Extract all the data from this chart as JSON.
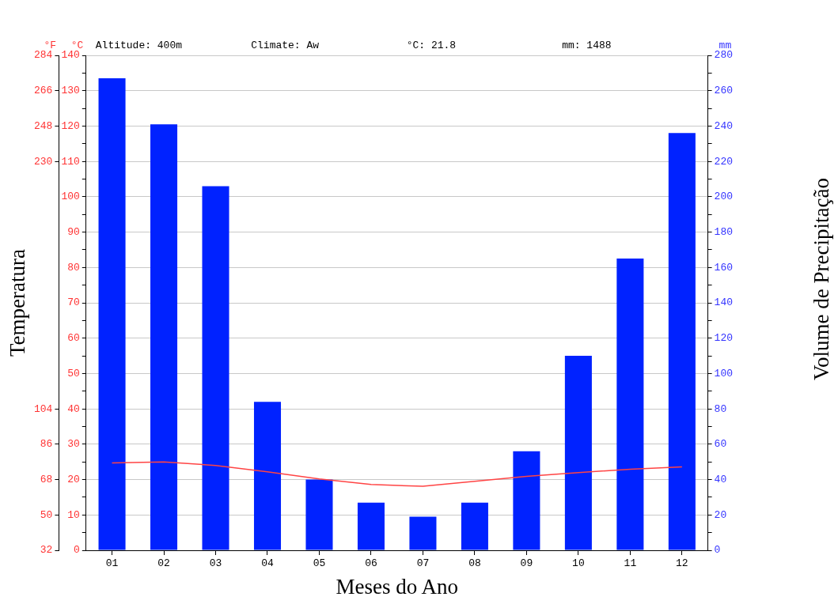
{
  "chart_data": {
    "type": "bar",
    "xlabel": "Meses do Ano",
    "ylabel": "Temperatura",
    "y2label": "Volume de Precipitação",
    "annotations": [
      "°F",
      "°C",
      "Altitude: 400m",
      "Climate: Aw",
      "°C: 21.8",
      "mm: 1488",
      "mm"
    ],
    "categories": [
      "01",
      "02",
      "03",
      "04",
      "05",
      "06",
      "07",
      "08",
      "09",
      "10",
      "11",
      "12"
    ],
    "series": [
      {
        "axis": "y2",
        "color": "#0022ff",
        "values": [
          267,
          241,
          206,
          84,
          40,
          27,
          19,
          27,
          56,
          110,
          165,
          236
        ]
      },
      {
        "type": "line",
        "axis": "y",
        "color": "#ff4444",
        "values": [
          24.7,
          25.0,
          24.0,
          22.2,
          20.2,
          18.6,
          18.1,
          19.5,
          20.9,
          22.0,
          22.9,
          23.6
        ]
      }
    ],
    "ylim": [
      0,
      140
    ],
    "yticks": [
      0,
      {
        "value": 5,
        "label": null
      },
      10,
      {
        "value": 15,
        "label": null
      },
      20,
      {
        "value": 25,
        "label": null
      },
      30,
      {
        "value": 35,
        "label": null
      },
      40,
      {
        "value": 45,
        "label": null
      },
      50,
      {
        "value": 55,
        "label": null
      },
      60,
      {
        "value": 65,
        "label": null
      },
      70,
      {
        "value": 75,
        "label": null
      },
      80,
      {
        "value": 85,
        "label": null
      },
      90,
      {
        "value": 95,
        "label": null
      },
      100,
      {
        "value": 105,
        "label": null
      },
      110,
      {
        "value": 115,
        "label": null
      },
      120,
      {
        "value": 125,
        "label": null
      },
      130,
      {
        "value": 135,
        "label": null
      },
      140
    ],
    "y2lim": [
      0,
      280
    ],
    "y2ticks": [
      0,
      {
        "value": 10,
        "label": null
      },
      20,
      {
        "value": 30,
        "label": null
      },
      40,
      {
        "value": 50,
        "label": null
      },
      60,
      {
        "value": 70,
        "label": null
      },
      80,
      {
        "value": 90,
        "label": null
      },
      100,
      {
        "value": 110,
        "label": null
      },
      120,
      {
        "value": 130,
        "label": null
      },
      140,
      {
        "value": 150,
        "label": null
      },
      160,
      {
        "value": 170,
        "label": null
      },
      180,
      {
        "value": 190,
        "label": null
      },
      200,
      {
        "value": 210,
        "label": null
      },
      220,
      {
        "value": 230,
        "label": null
      },
      240,
      {
        "value": 250,
        "label": null
      },
      260,
      {
        "value": 270,
        "label": null
      },
      280
    ],
    "y3lim": [
      32,
      284
    ],
    "y3ticks": [
      32,
      50,
      68,
      86,
      104,
      230,
      248,
      266,
      284
    ],
    "grid": "y",
    "legend": false,
    "marker": "none",
    "line_style": "solid"
  }
}
